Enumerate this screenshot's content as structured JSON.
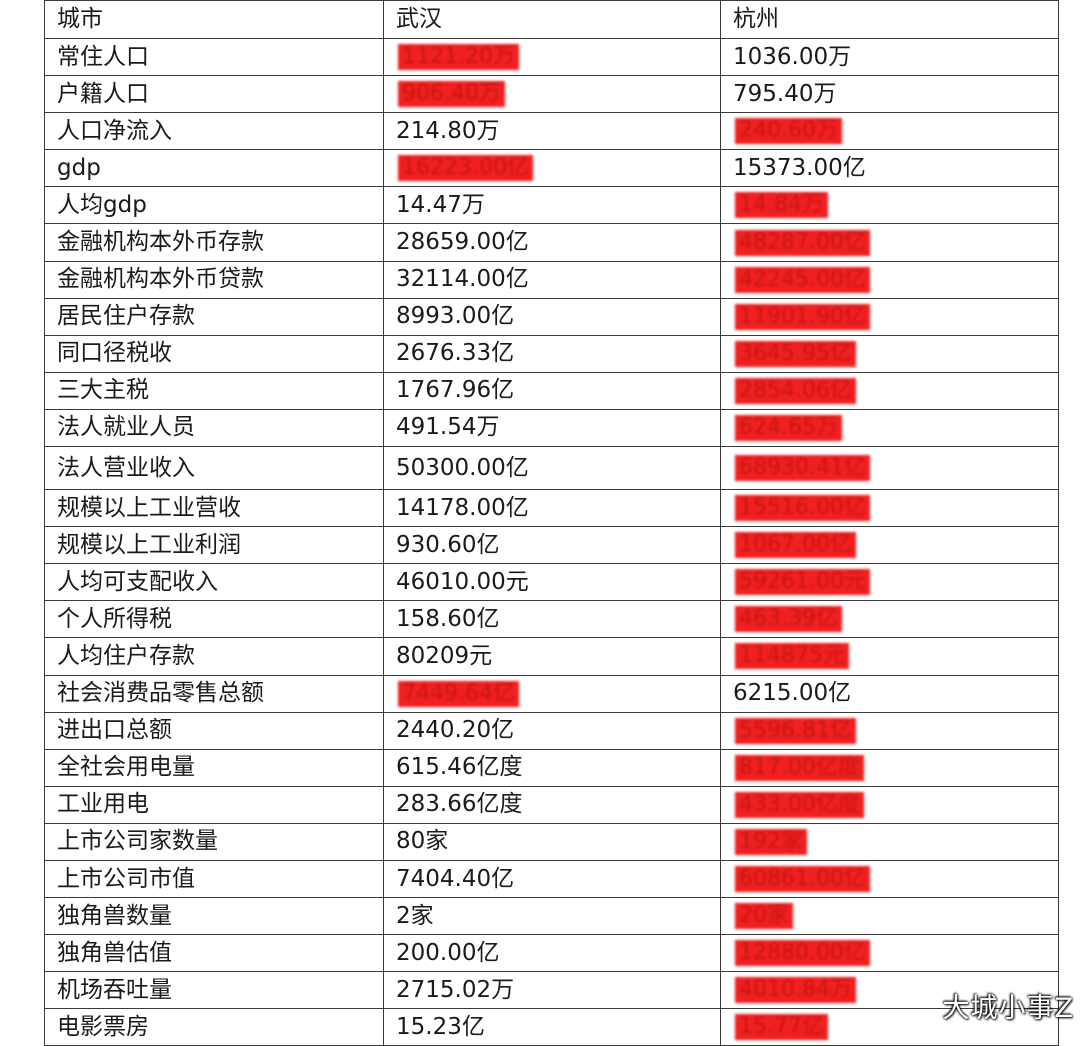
{
  "table": {
    "headers": [
      "城市",
      "武汉",
      "杭州"
    ],
    "rows": [
      {
        "label": "常住人口",
        "wuhan": "1121.20万",
        "hangzhou": "1036.00万",
        "highlight": "wuhan"
      },
      {
        "label": "户籍人口",
        "wuhan": "906.40万",
        "hangzhou": "795.40万",
        "highlight": "wuhan"
      },
      {
        "label": "人口净流入",
        "wuhan": "214.80万",
        "hangzhou": "240.60万",
        "highlight": "hangzhou"
      },
      {
        "label": "gdp",
        "wuhan": "16223.00亿",
        "hangzhou": "15373.00亿",
        "highlight": "wuhan"
      },
      {
        "label": "人均gdp",
        "wuhan": "14.47万",
        "hangzhou": "14.84万",
        "highlight": "hangzhou"
      },
      {
        "label": "金融机构本外币存款",
        "wuhan": "28659.00亿",
        "hangzhou": "48287.00亿",
        "highlight": "hangzhou"
      },
      {
        "label": "金融机构本外币贷款",
        "wuhan": "32114.00亿",
        "hangzhou": "42245.00亿",
        "highlight": "hangzhou"
      },
      {
        "label": "居民住户存款",
        "wuhan": "8993.00亿",
        "hangzhou": "11901.90亿",
        "highlight": "hangzhou"
      },
      {
        "label": "同口径税收",
        "wuhan": "2676.33亿",
        "hangzhou": "3645.95亿",
        "highlight": "hangzhou"
      },
      {
        "label": "三大主税",
        "wuhan": "1767.96亿",
        "hangzhou": "2854.06亿",
        "highlight": "hangzhou"
      },
      {
        "label": "法人就业人员",
        "wuhan": "491.54万",
        "hangzhou": "624.65万",
        "highlight": "hangzhou"
      },
      {
        "label": "法人营业收入",
        "wuhan": "50300.00亿",
        "hangzhou": "68930.41亿",
        "highlight": "hangzhou",
        "tall": true
      },
      {
        "label": "规模以上工业营收",
        "wuhan": "14178.00亿",
        "hangzhou": "15516.00亿",
        "highlight": "hangzhou"
      },
      {
        "label": "规模以上工业利润",
        "wuhan": "930.60亿",
        "hangzhou": "1067.00亿",
        "highlight": "hangzhou"
      },
      {
        "label": "人均可支配收入",
        "wuhan": "46010.00元",
        "hangzhou": "59261.00元",
        "highlight": "hangzhou"
      },
      {
        "label": "个人所得税",
        "wuhan": "158.60亿",
        "hangzhou": "463.39亿",
        "highlight": "hangzhou"
      },
      {
        "label": "人均住户存款",
        "wuhan": "80209元",
        "hangzhou": "114875元",
        "highlight": "hangzhou"
      },
      {
        "label": "社会消费品零售总额",
        "wuhan": "7449.64亿",
        "hangzhou": "6215.00亿",
        "highlight": "wuhan"
      },
      {
        "label": "进出口总额",
        "wuhan": "2440.20亿",
        "hangzhou": "5596.81亿",
        "highlight": "hangzhou"
      },
      {
        "label": "全社会用电量",
        "wuhan": "615.46亿度",
        "hangzhou": "817.00亿度",
        "highlight": "hangzhou"
      },
      {
        "label": "工业用电",
        "wuhan": "283.66亿度",
        "hangzhou": "433.00亿度",
        "highlight": "hangzhou"
      },
      {
        "label": "上市公司家数量",
        "wuhan": "80家",
        "hangzhou": "192家",
        "highlight": "hangzhou"
      },
      {
        "label": "上市公司市值",
        "wuhan": "7404.40亿",
        "hangzhou": "60861.00亿",
        "highlight": "hangzhou"
      },
      {
        "label": "独角兽数量",
        "wuhan": "2家",
        "hangzhou": "20家",
        "highlight": "hangzhou"
      },
      {
        "label": "独角兽估值",
        "wuhan": "200.00亿",
        "hangzhou": "12880.00亿",
        "highlight": "hangzhou"
      },
      {
        "label": "机场吞吐量",
        "wuhan": "2715.02万",
        "hangzhou": "4010.84万",
        "highlight": "hangzhou"
      },
      {
        "label": "电影票房",
        "wuhan": "15.23亿",
        "hangzhou": "15.77亿",
        "highlight": "hangzhou"
      }
    ]
  },
  "watermark": "大城小事Z",
  "colors": {
    "highlight": "#f02020",
    "border": "#3a3a3a",
    "text": "#1a1a1a"
  }
}
